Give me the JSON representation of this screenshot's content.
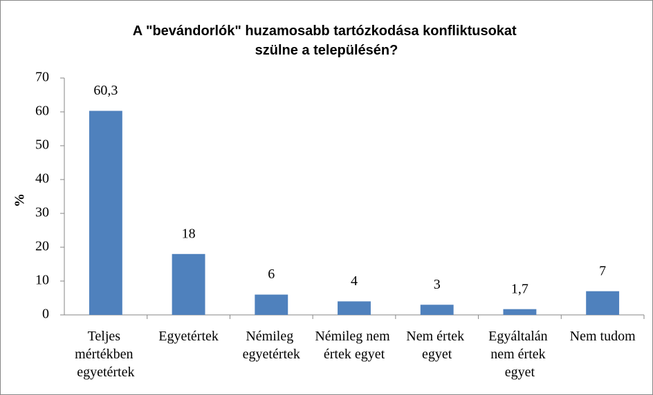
{
  "chart_data": {
    "type": "bar",
    "title": "A \"bevándorlók\" huzamosabb tartózkodása konfliktusokat szülne a településén?",
    "ylabel": "%",
    "categories": [
      "Teljes mértékben egyetértek",
      "Egyetértek",
      "Némileg egyetértek",
      "Némileg nem értek egyet",
      "Nem értek egyet",
      "Egyáltalán nem értek egyet",
      "Nem tudom"
    ],
    "values": [
      60.3,
      18,
      6,
      4,
      3,
      1.7,
      7
    ],
    "value_labels": [
      "60,3",
      "18",
      "6",
      "4",
      "3",
      "1,7",
      "7"
    ],
    "color": "#4f81bd",
    "ylim": [
      0,
      70
    ],
    "yticks": [
      0,
      10,
      20,
      30,
      40,
      50,
      60,
      70
    ],
    "grid": false
  }
}
